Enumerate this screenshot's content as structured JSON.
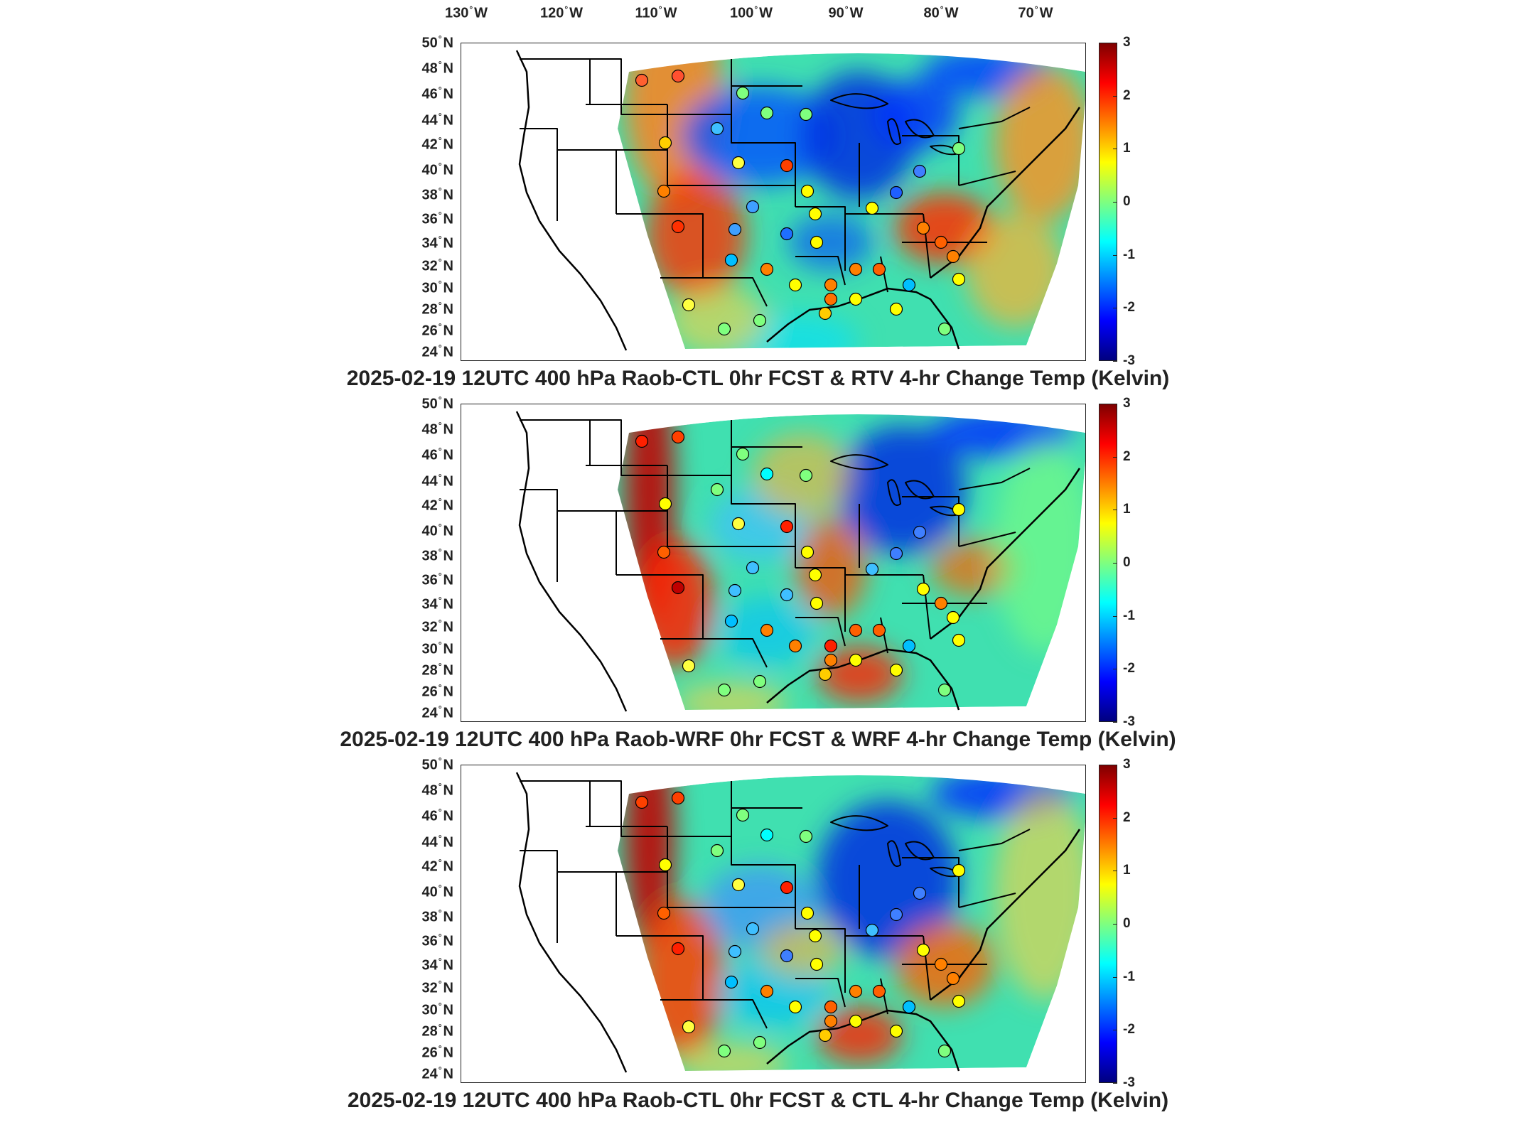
{
  "top_axis": {
    "lon_labels": [
      "130",
      "120",
      "110",
      "100",
      "90",
      "80",
      "70"
    ],
    "lon_suffix": "W"
  },
  "lat_labels": [
    "50",
    "48",
    "46",
    "44",
    "42",
    "40",
    "38",
    "36",
    "34",
    "32",
    "30",
    "28",
    "26",
    "24"
  ],
  "lat_suffix": "N",
  "colorbar": {
    "ticks": [
      "3",
      "2",
      "1",
      "0",
      "-1",
      "-2",
      "-3"
    ],
    "colormap": "jet",
    "range": [
      -3,
      3
    ]
  },
  "panels": [
    {
      "title": "2025-02-19 12UTC 400 hPa Raob-CTL 0hr FCST & RTV 4-hr Change Temp (Kelvin)"
    },
    {
      "title": "2025-02-19 12UTC 400 hPa Raob-WRF 0hr FCST & WRF 4-hr Change Temp (Kelvin)"
    },
    {
      "title": "2025-02-19 12UTC 400 hPa Raob-CTL 0hr FCST & CTL 4-hr Change Temp (Kelvin)"
    }
  ],
  "colors": {
    "cold": "#0000ff",
    "neutral": "#00ffff",
    "warm": "#ff0000",
    "outline": "#000000"
  }
}
